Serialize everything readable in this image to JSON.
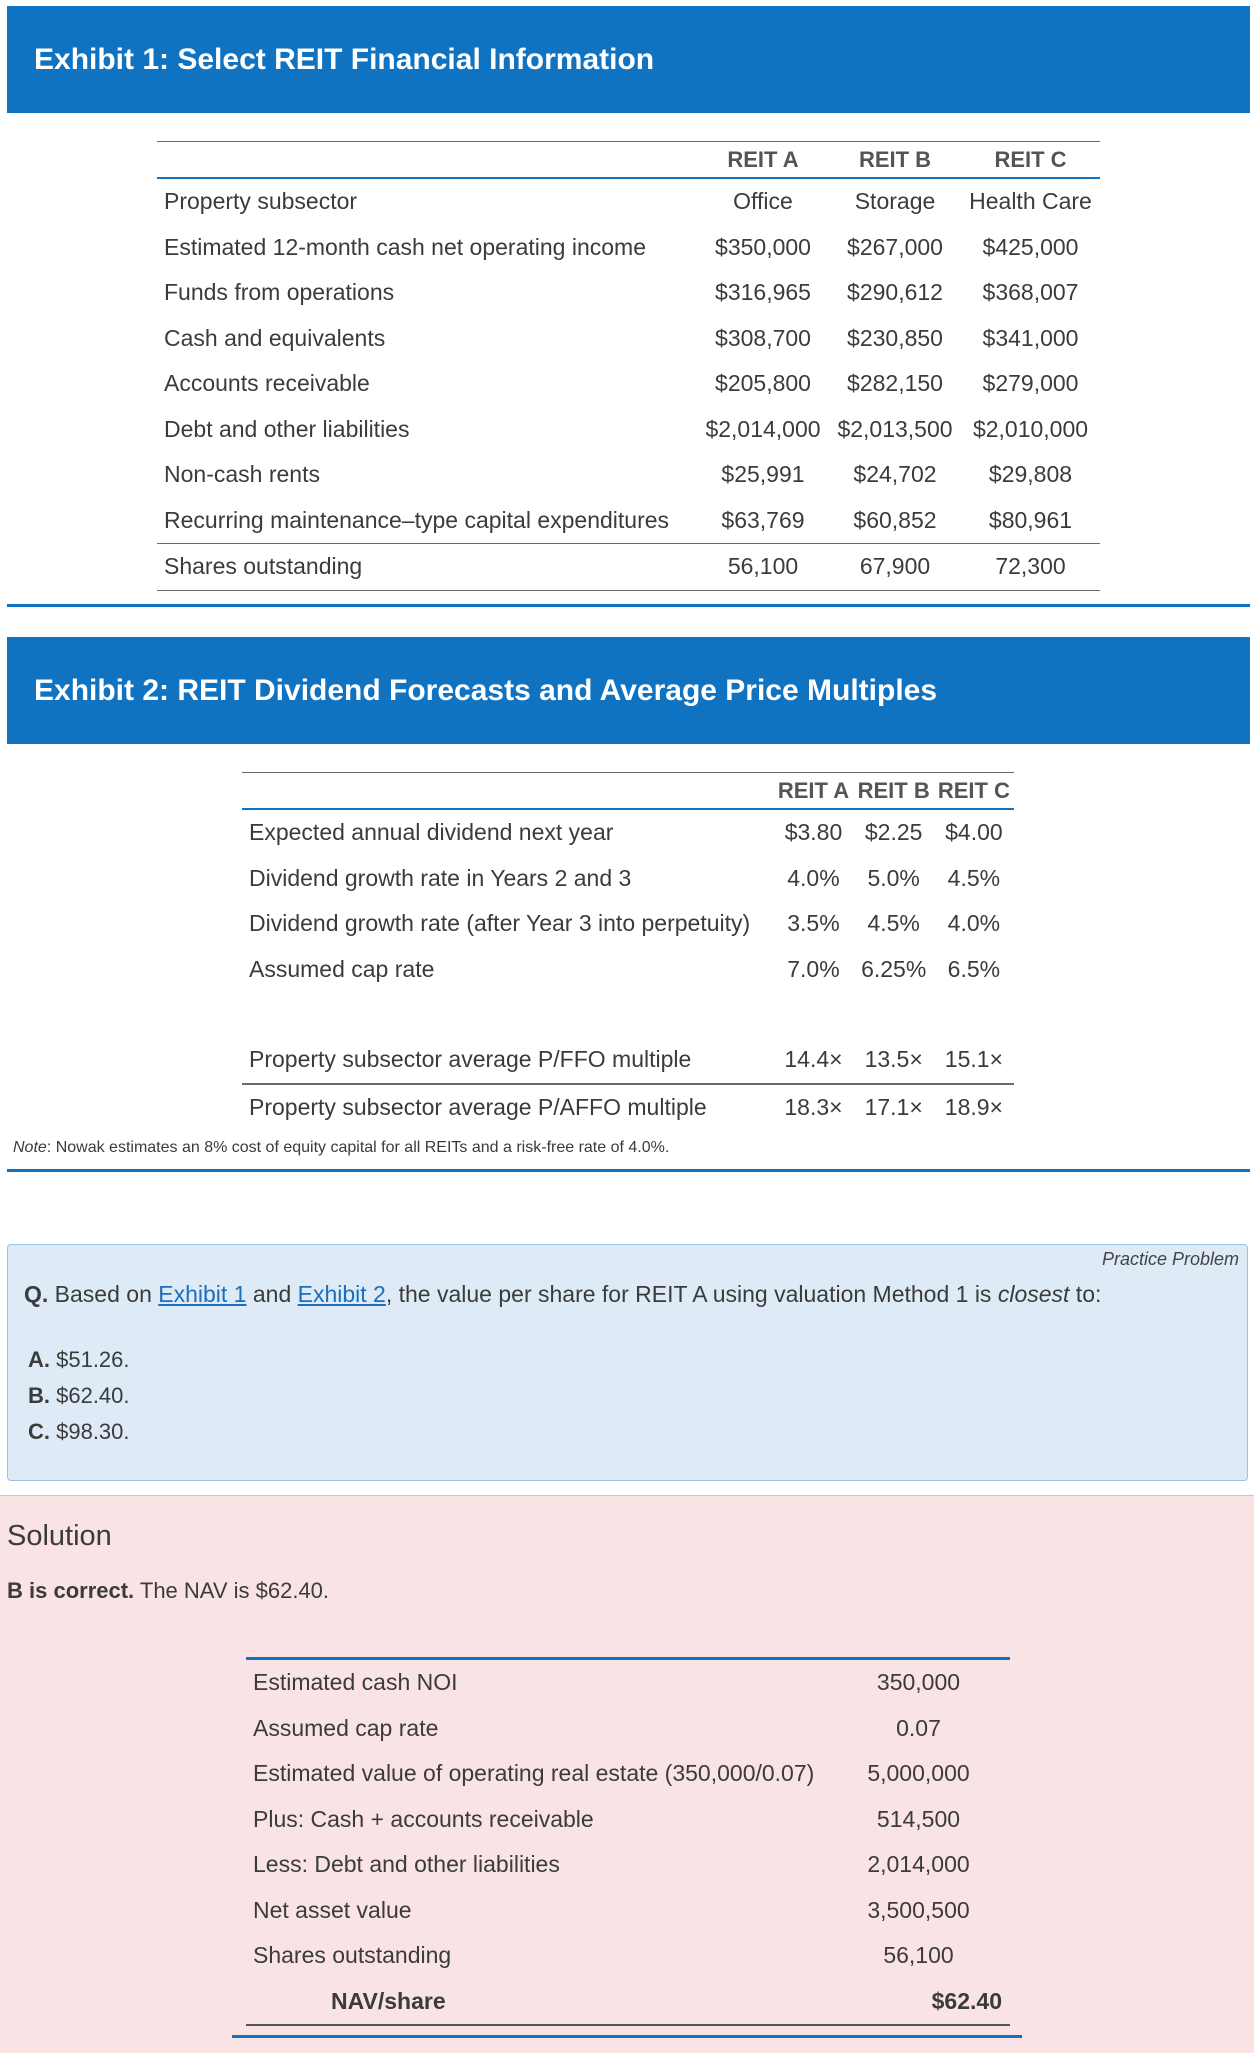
{
  "exhibit1": {
    "title": "Exhibit 1: Select REIT Financial Information",
    "columns": [
      "",
      "REIT A",
      "REIT B",
      "REIT C"
    ],
    "rows": [
      [
        "Property subsector",
        "Office",
        "Storage",
        "Health Care"
      ],
      [
        "Estimated 12-month cash net operating income",
        "$350,000",
        "$267,000",
        "$425,000"
      ],
      [
        "Funds from operations",
        "$316,965",
        "$290,612",
        "$368,007"
      ],
      [
        "Cash and equivalents",
        "$308,700",
        "$230,850",
        "$341,000"
      ],
      [
        "Accounts receivable",
        "$205,800",
        "$282,150",
        "$279,000"
      ],
      [
        "Debt and other liabilities",
        "$2,014,000",
        "$2,013,500",
        "$2,010,000"
      ],
      [
        "Non-cash rents",
        "$25,991",
        "$24,702",
        "$29,808"
      ],
      [
        "Recurring maintenance–type capital expenditures",
        "$63,769",
        "$60,852",
        "$80,961"
      ],
      [
        "Shares outstanding",
        "56,100",
        "67,900",
        "72,300"
      ]
    ]
  },
  "exhibit2": {
    "title": "Exhibit 2: REIT Dividend Forecasts and Average Price Multiples",
    "columns": [
      "",
      "REIT A",
      "REIT B",
      "REIT C"
    ],
    "rows": [
      [
        "Expected annual dividend next year",
        "$3.80",
        "$2.25",
        "$4.00"
      ],
      [
        "Dividend growth rate in Years 2 and 3",
        "4.0%",
        "5.0%",
        "4.5%"
      ],
      [
        "Dividend growth rate (after Year 3 into perpetuity)",
        "3.5%",
        "4.5%",
        "4.0%"
      ],
      [
        "Assumed cap rate",
        "7.0%",
        "6.25%",
        "6.5%"
      ]
    ],
    "multiples": [
      [
        "Property subsector average P/FFO multiple",
        "14.4×",
        "13.5×",
        "15.1×"
      ],
      [
        "Property subsector average P/AFFO multiple",
        "18.3×",
        "17.1×",
        "18.9×"
      ]
    ],
    "note_label": "Note",
    "note_text": ": Nowak estimates an 8% cost of equity capital for all REITs and a risk-free rate of 4.0%."
  },
  "problem": {
    "label": "Practice Problem",
    "q_prefix": "Q.",
    "q_text1": " Based on ",
    "link1": "Exhibit 1",
    "q_text2": " and ",
    "link2": "Exhibit 2",
    "q_text3": ", the value per share for REIT A using valuation Method 1 is ",
    "q_emph": "closest",
    "q_text4": " to:",
    "choices": [
      {
        "letter": "A.",
        "text": " $51.26."
      },
      {
        "letter": "B.",
        "text": " $62.40."
      },
      {
        "letter": "C.",
        "text": " $98.30."
      }
    ]
  },
  "solution": {
    "title": "Solution",
    "answer_bold": "B is correct.",
    "answer_text": " The NAV is $62.40.",
    "rows": [
      [
        "Estimated cash NOI",
        "350,000"
      ],
      [
        "Assumed cap rate",
        "0.07"
      ],
      [
        "Estimated value of operating real estate (350,000/0.07)",
        "5,000,000"
      ],
      [
        "Plus: Cash + accounts receivable",
        "514,500"
      ],
      [
        "Less: Debt and other liabilities",
        "2,014,000"
      ],
      [
        "Net asset value",
        "3,500,500"
      ],
      [
        "Shares outstanding",
        "56,100"
      ]
    ],
    "nav_label": "NAV/share",
    "nav_value": "$62.40"
  },
  "colors": {
    "header_blue": "#0f73c1",
    "problem_bg": "#deebf7",
    "solution_bg": "#f9e3e4",
    "link": "#1a6fbf"
  }
}
